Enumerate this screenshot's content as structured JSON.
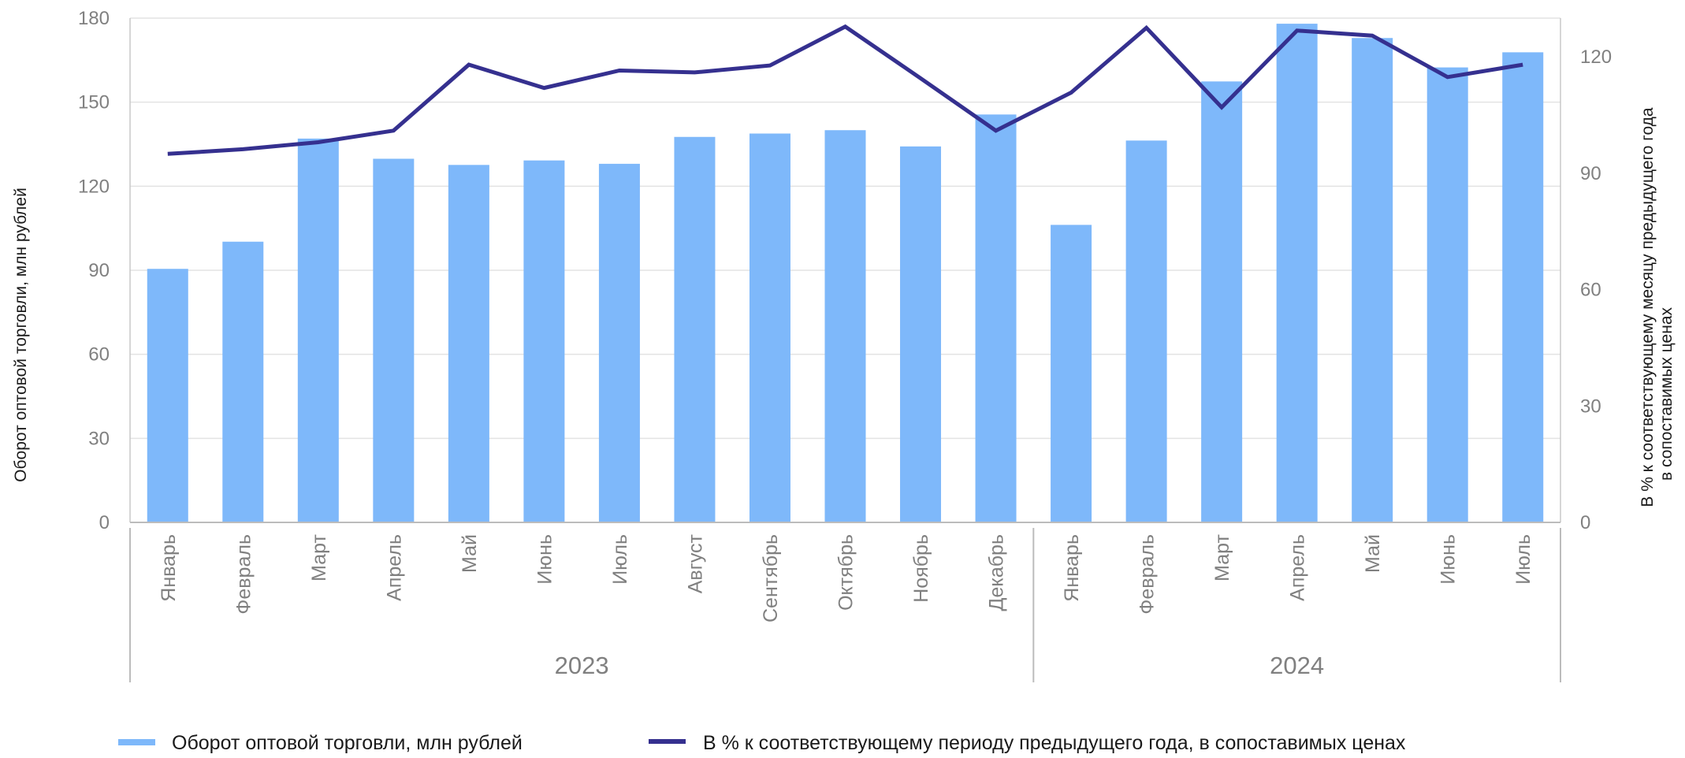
{
  "chart_data": {
    "type": "bar",
    "title": "",
    "categories": [
      "Январь",
      "Февраль",
      "Март",
      "Апрель",
      "Май",
      "Июнь",
      "Июль",
      "Август",
      "Сентябрь",
      "Октябрь",
      "Ноябрь",
      "Декабрь",
      "Январь",
      "Февраль",
      "Март",
      "Апрель",
      "Май",
      "Июнь",
      "Июль"
    ],
    "groups": [
      {
        "label": "2023",
        "start": 0,
        "end": 11
      },
      {
        "label": "2024",
        "start": 12,
        "end": 18
      }
    ],
    "series": [
      {
        "name": "Оборот оптовой торговли, млн рублей",
        "type": "bar",
        "axis": "left",
        "color": "#7eb8fa",
        "values": [
          90.5,
          100.2,
          137.0,
          129.8,
          127.6,
          129.2,
          128.0,
          137.6,
          138.8,
          140.0,
          134.2,
          145.6,
          106.2,
          136.3,
          157.4,
          178.0,
          172.9,
          162.4,
          167.8
        ]
      },
      {
        "name": "В % к соответствующему периоду предыдущего года, в сопоставимых ценах",
        "type": "line",
        "axis": "right",
        "color": "#35308f",
        "values": [
          95.0,
          96.2,
          98.0,
          101.0,
          118.0,
          112.0,
          116.5,
          116.0,
          117.8,
          127.8,
          114.5,
          101.0,
          110.8,
          127.5,
          107.0,
          126.8,
          125.5,
          114.8,
          118.0
        ]
      }
    ],
    "y_left": {
      "label": "Оборот оптовой торговли, млн рублей",
      "range": [
        0,
        180
      ],
      "ticks": [
        "0",
        "30",
        "60",
        "90",
        "120",
        "150",
        "180"
      ]
    },
    "y_right": {
      "label_line1": "В % к соответствующему месяцу предыдущего года",
      "label_line2": "в сопоставимых ценах",
      "range": [
        0,
        130
      ],
      "ticks": [
        "0",
        "30",
        "60",
        "90",
        "120"
      ]
    },
    "grid": true,
    "legend_position": "bottom",
    "legend": [
      {
        "label": "Оборот оптовой торговли, млн рублей",
        "marker": "bar-swatch"
      },
      {
        "label": "В % к соответствующему периоду предыдущего года, в сопоставимых ценах",
        "marker": "line-swatch"
      }
    ]
  }
}
